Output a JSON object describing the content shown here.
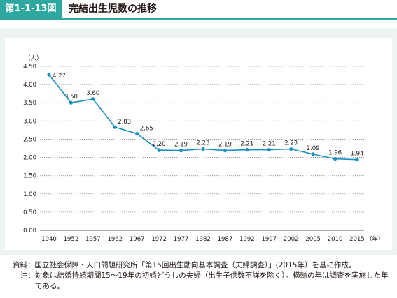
{
  "header": {
    "figure_label": "第1-1-13図",
    "title": "完結出生児数の推移"
  },
  "chart_data": {
    "type": "line",
    "title": "",
    "xlabel": "",
    "ylabel": "",
    "y_unit": "（人）",
    "x_unit": "（年）",
    "categories": [
      "1940",
      "1952",
      "1957",
      "1962",
      "1967",
      "1972",
      "1977",
      "1982",
      "1987",
      "1992",
      "1997",
      "2002",
      "2005",
      "2010",
      "2015"
    ],
    "series": [
      {
        "values": [
          4.27,
          3.5,
          3.6,
          2.83,
          2.65,
          2.2,
          2.19,
          2.23,
          2.19,
          2.21,
          2.21,
          2.23,
          2.09,
          1.96,
          1.94
        ]
      }
    ],
    "data_labels": [
      "4.27",
      "3.50",
      "3.60",
      "2.83",
      "2.65",
      "2.20",
      "2.19",
      "2.23",
      "2.19",
      "2.21",
      "2.21",
      "2.23",
      "2.09",
      "1.96",
      "1.94"
    ],
    "ylim": [
      0,
      4.5
    ],
    "yticks": [
      "0.00",
      "0.50",
      "1.00",
      "1.50",
      "2.00",
      "2.50",
      "3.00",
      "3.50",
      "4.00",
      "4.50"
    ],
    "grid": "horizontal dotted",
    "colors": {
      "line": "#1a8fc0",
      "grid": "#8f8f8f",
      "axis": "#555555",
      "accent": "#2ea7a0"
    }
  },
  "notes": {
    "source_head": "資料：",
    "source_text": "国立社会保障・人口問題研究所「第15回出生動向基本調査（夫婦調査）」(2015年）を基に作成。",
    "note_head": "注：",
    "note_text": "対象は結婚持続期間15～19年の初婚どうしの夫婦（出生子供数不詳を除く）。横軸の年は調査を実施した年である。"
  }
}
